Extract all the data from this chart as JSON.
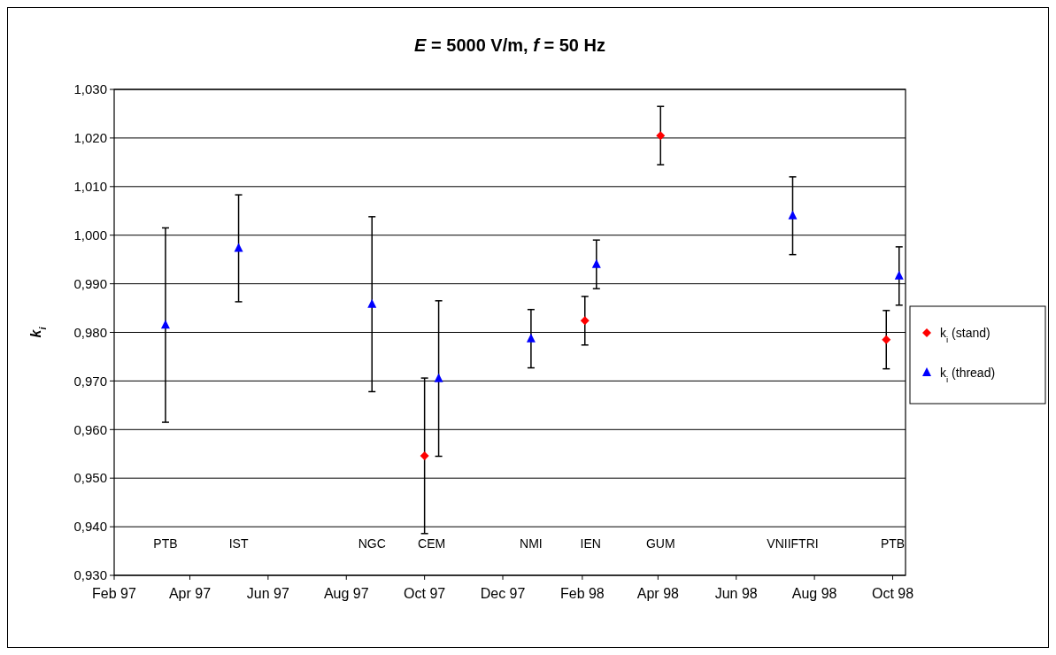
{
  "chart_data": {
    "type": "scatter",
    "title": "E = 5000 V/m,  f = 50 Hz",
    "ylabel": "k$_{i}$",
    "xlim": [
      "1997-02-01",
      "1998-10-11"
    ],
    "xticks": [
      {
        "value": "1997-02-01",
        "label": "Feb 97"
      },
      {
        "value": "1997-04-01",
        "label": "Apr 97"
      },
      {
        "value": "1997-06-01",
        "label": "Jun 97"
      },
      {
        "value": "1997-08-01",
        "label": "Aug 97"
      },
      {
        "value": "1997-10-01",
        "label": "Oct 97"
      },
      {
        "value": "1997-12-01",
        "label": "Dec 97"
      },
      {
        "value": "1998-02-01",
        "label": "Feb 98"
      },
      {
        "value": "1998-04-01",
        "label": "Apr 98"
      },
      {
        "value": "1998-06-01",
        "label": "Jun 98"
      },
      {
        "value": "1998-08-01",
        "label": "Aug 98"
      },
      {
        "value": "1998-10-01",
        "label": "Oct 98"
      }
    ],
    "ylim": [
      0.93,
      1.03
    ],
    "yticks": [
      {
        "value": 0.93,
        "label": "0,930"
      },
      {
        "value": 0.94,
        "label": "0,940"
      },
      {
        "value": 0.95,
        "label": "0,950"
      },
      {
        "value": 0.96,
        "label": "0,960"
      },
      {
        "value": 0.97,
        "label": "0,970"
      },
      {
        "value": 0.98,
        "label": "0,980"
      },
      {
        "value": 0.99,
        "label": "0,990"
      },
      {
        "value": 1.0,
        "label": "1,000"
      },
      {
        "value": 1.01,
        "label": "1,010"
      },
      {
        "value": 1.02,
        "label": "1,020"
      },
      {
        "value": 1.03,
        "label": "1,030"
      }
    ],
    "grid": "y",
    "legend": "right",
    "series": [
      {
        "name": "k$_{i}$ (stand)",
        "color": "#ff0000",
        "marker": "diamond",
        "x": [
          "1997-10-01",
          "1998-02-03",
          "1998-04-03",
          "1998-09-26"
        ],
        "values": [
          0.9546,
          0.9824,
          1.0205,
          0.9785
        ],
        "errors": [
          0.016,
          0.005,
          0.006,
          0.006
        ]
      },
      {
        "name": "k$_{i}$ (thread)",
        "color": "#0000ff",
        "marker": "triangle",
        "x": [
          "1997-03-13",
          "1997-05-09",
          "1997-08-21",
          "1997-10-12",
          "1997-12-23",
          "1998-02-12",
          "1998-07-15",
          "1998-10-06"
        ],
        "values": [
          0.9815,
          0.9973,
          0.9858,
          0.9705,
          0.9787,
          0.994,
          1.004,
          0.9916
        ],
        "errors": [
          0.02,
          0.011,
          0.018,
          0.016,
          0.006,
          0.005,
          0.008,
          0.006
        ]
      }
    ],
    "annotations": [
      "PTB",
      "IST",
      "NGC",
      "CEM",
      "NMI",
      "IEN",
      "GUM",
      "VNIIFTRI",
      "PTB"
    ]
  }
}
